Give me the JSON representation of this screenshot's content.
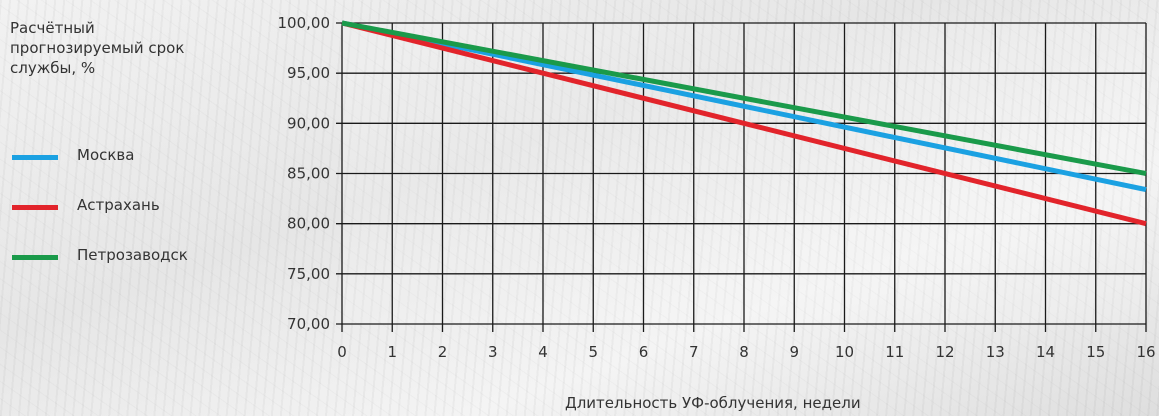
{
  "chart_data": {
    "type": "line",
    "ylabel": "Расчётный прогнозируемый срок службы, %",
    "xlabel": "Длительность УФ-облучения, недели",
    "x": [
      0,
      16
    ],
    "ylim": [
      70,
      100
    ],
    "yticks": [
      "100,00",
      "95,00",
      "90,00",
      "85,00",
      "80,00",
      "75,00",
      "70,00"
    ],
    "ytick_values": [
      100,
      95,
      90,
      85,
      80,
      75,
      70
    ],
    "xticks": [
      "0",
      "1",
      "2",
      "3",
      "4",
      "5",
      "6",
      "7",
      "8",
      "9",
      "10",
      "11",
      "12",
      "13",
      "14",
      "15",
      "16"
    ],
    "grid": true,
    "legend_position": "left",
    "series": [
      {
        "name": "Москва",
        "color": "#1ba1e2",
        "values": [
          100,
          83.4
        ]
      },
      {
        "name": "Астрахань",
        "color": "#e2242b",
        "values": [
          100,
          80.0
        ]
      },
      {
        "name": "Петрозаводск",
        "color": "#1a9a4a",
        "values": [
          100,
          85.0
        ]
      }
    ]
  }
}
